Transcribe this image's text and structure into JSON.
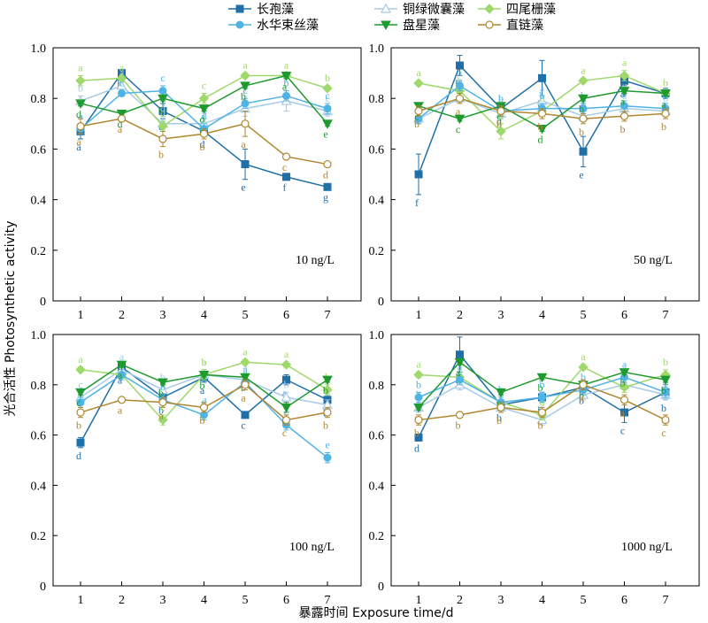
{
  "chart_data": {
    "type": "line",
    "ylabel": "光合活性 Photosynthetic activity",
    "xlabel": "暴露时间 Exposure time/d",
    "x": [
      1,
      2,
      3,
      4,
      5,
      6,
      7
    ],
    "xticks": [
      "1",
      "2",
      "3",
      "4",
      "5",
      "6",
      "7"
    ],
    "yticks": [
      "0",
      "0.2",
      "0.4",
      "0.6",
      "0.8",
      "1.0"
    ],
    "ylim": [
      0,
      1.0
    ],
    "legend": {
      "placement": "top-center",
      "entries": [
        {
          "name": "长孢藻",
          "color": "#1f6fa8",
          "marker": "square-filled"
        },
        {
          "name": "铜绿微囊藻",
          "color": "#a6cbe8",
          "marker": "triangle-open"
        },
        {
          "name": "四尾栅藻",
          "color": "#9fd86b",
          "marker": "diamond-filled"
        },
        {
          "name": "水华束丝藻",
          "color": "#4fb3e6",
          "marker": "circle-filled"
        },
        {
          "name": "盘星藻",
          "color": "#1e9a2e",
          "marker": "triangle-down-filled"
        },
        {
          "name": "直链藻",
          "color": "#b0862e",
          "marker": "circle-open"
        }
      ]
    },
    "panels": [
      {
        "label": "10 ng/L",
        "series": [
          {
            "name": "长孢藻",
            "values": [
              0.67,
              0.9,
              0.75,
              0.67,
              0.54,
              0.49,
              0.45
            ],
            "err": [
              0.03,
              0.01,
              0.03,
              0.02,
              0.06,
              0.01,
              0.01
            ],
            "letters": [
              "a",
              "b",
              "a",
              "d",
              "e",
              "f",
              "g"
            ]
          },
          {
            "name": "铜绿微囊藻",
            "values": [
              0.79,
              0.85,
              0.7,
              0.7,
              0.76,
              0.79,
              0.75
            ],
            "err": [
              0.02,
              0.02,
              0.03,
              0.02,
              0.03,
              0.04,
              0.02
            ],
            "letters": [
              "b",
              "a",
              "d",
              "d",
              "c",
              "b",
              "c"
            ]
          },
          {
            "name": "四尾栅藻",
            "values": [
              0.87,
              0.88,
              0.69,
              0.8,
              0.89,
              0.89,
              0.84
            ],
            "err": [
              0.02,
              0.01,
              0.02,
              0.02,
              0.01,
              0.01,
              0.01
            ],
            "letters": [
              "a",
              "a",
              "d",
              "c",
              "a",
              "a",
              "b"
            ]
          },
          {
            "name": "水华束丝藻",
            "values": [
              0.68,
              0.82,
              0.83,
              0.68,
              0.78,
              0.81,
              0.76
            ],
            "err": [
              0.02,
              0.01,
              0.02,
              0.02,
              0.02,
              0.02,
              0.02
            ],
            "letters": [
              "a",
              "c",
              "c",
              "d",
              "c",
              "b",
              "c"
            ]
          },
          {
            "name": "盘星藻",
            "values": [
              0.78,
              0.74,
              0.8,
              0.76,
              0.85,
              0.89,
              0.7
            ],
            "err": [
              0.01,
              0.01,
              0.01,
              0.01,
              0.01,
              0.01,
              0.01
            ],
            "letters": [
              "d",
              "d",
              "c",
              "d",
              "b",
              "a",
              "e"
            ]
          },
          {
            "name": "直链藻",
            "values": [
              0.69,
              0.72,
              0.64,
              0.66,
              0.7,
              0.57,
              0.54
            ],
            "err": [
              0.03,
              0.01,
              0.03,
              0.02,
              0.05,
              0.01,
              0.01
            ],
            "letters": [
              "a",
              "a",
              "b",
              "b",
              "a",
              "c",
              "d"
            ]
          }
        ]
      },
      {
        "label": "50 ng/L",
        "series": [
          {
            "name": "长孢藻",
            "values": [
              0.5,
              0.93,
              0.76,
              0.88,
              0.59,
              0.87,
              0.82
            ],
            "err": [
              0.08,
              0.04,
              0.02,
              0.07,
              0.06,
              0.02,
              0.02
            ],
            "letters": [
              "f",
              "b",
              "d",
              "b",
              "e",
              "a",
              "c"
            ]
          },
          {
            "name": "铜绿微囊藻",
            "values": [
              0.72,
              0.8,
              0.74,
              0.79,
              0.73,
              0.76,
              0.75
            ],
            "err": [
              0.02,
              0.02,
              0.02,
              0.02,
              0.02,
              0.02,
              0.02
            ],
            "letters": [
              "b",
              "a",
              "b",
              "a",
              "b",
              "a",
              "b"
            ]
          },
          {
            "name": "四尾栅藻",
            "values": [
              0.86,
              0.83,
              0.67,
              0.75,
              0.87,
              0.89,
              0.82
            ],
            "err": [
              0.01,
              0.01,
              0.03,
              0.02,
              0.01,
              0.02,
              0.01
            ],
            "letters": [
              "a",
              "b",
              "d",
              "c",
              "a",
              "a",
              "b"
            ]
          },
          {
            "name": "水华束丝藻",
            "values": [
              0.72,
              0.85,
              0.75,
              0.76,
              0.76,
              0.77,
              0.76
            ],
            "err": [
              0.02,
              0.02,
              0.02,
              0.02,
              0.02,
              0.02,
              0.02
            ],
            "letters": [
              "c",
              "a",
              "b",
              "b",
              "b",
              "b",
              "b"
            ]
          },
          {
            "name": "盘星藻",
            "values": [
              0.77,
              0.72,
              0.77,
              0.68,
              0.8,
              0.83,
              0.82
            ],
            "err": [
              0.01,
              0.01,
              0.01,
              0.01,
              0.01,
              0.01,
              0.01
            ],
            "letters": [
              "c",
              "c",
              "c",
              "d",
              "b",
              "a",
              "a"
            ]
          },
          {
            "name": "直链藻",
            "values": [
              0.75,
              0.8,
              0.75,
              0.74,
              0.72,
              0.73,
              0.74
            ],
            "err": [
              0.02,
              0.02,
              0.02,
              0.02,
              0.02,
              0.02,
              0.02
            ],
            "letters": [
              "b",
              "a",
              "b",
              "b",
              "b",
              "b",
              "b"
            ]
          }
        ]
      },
      {
        "label": "100 ng/L",
        "series": [
          {
            "name": "长孢藻",
            "values": [
              0.57,
              0.87,
              0.75,
              0.83,
              0.68,
              0.82,
              0.74
            ],
            "err": [
              0.02,
              0.02,
              0.02,
              0.02,
              0.01,
              0.02,
              0.02
            ],
            "letters": [
              "d",
              "a",
              "b",
              "a",
              "c",
              "a",
              "b"
            ]
          },
          {
            "name": "铜绿微囊藻",
            "values": [
              0.75,
              0.86,
              0.78,
              0.84,
              0.82,
              0.75,
              0.72
            ],
            "err": [
              0.02,
              0.02,
              0.02,
              0.02,
              0.02,
              0.02,
              0.02
            ],
            "letters": [
              "c",
              "a",
              "b",
              "a",
              "a",
              "b",
              "c"
            ]
          },
          {
            "name": "四尾栅藻",
            "values": [
              0.86,
              0.84,
              0.66,
              0.84,
              0.89,
              0.88,
              0.78
            ],
            "err": [
              0.01,
              0.01,
              0.02,
              0.02,
              0.01,
              0.01,
              0.02
            ],
            "letters": [
              "a",
              "a",
              "c",
              "b",
              "a",
              "a",
              "b"
            ]
          },
          {
            "name": "水华束丝藻",
            "values": [
              0.73,
              0.84,
              0.74,
              0.68,
              0.81,
              0.64,
              0.51
            ],
            "err": [
              0.02,
              0.02,
              0.02,
              0.02,
              0.02,
              0.02,
              0.02
            ],
            "letters": [
              "c",
              "a",
              "b",
              "d",
              "a",
              "c",
              "e"
            ]
          },
          {
            "name": "盘星藻",
            "values": [
              0.77,
              0.88,
              0.81,
              0.84,
              0.83,
              0.71,
              0.82
            ],
            "err": [
              0.01,
              0.01,
              0.01,
              0.01,
              0.01,
              0.02,
              0.01
            ],
            "letters": [
              "c",
              "a",
              "b",
              "b",
              "b",
              "d",
              "b"
            ]
          },
          {
            "name": "直链藻",
            "values": [
              0.69,
              0.74,
              0.73,
              0.71,
              0.8,
              0.66,
              0.69
            ],
            "err": [
              0.02,
              0.01,
              0.02,
              0.02,
              0.02,
              0.02,
              0.02
            ],
            "letters": [
              "b",
              "a",
              "a",
              "b",
              "a",
              "c",
              "b"
            ]
          }
        ]
      },
      {
        "label": "1000 ng/L",
        "series": [
          {
            "name": "长孢藻",
            "values": [
              0.59,
              0.92,
              0.72,
              0.75,
              0.79,
              0.69,
              0.77
            ],
            "err": [
              0.01,
              0.07,
              0.02,
              0.02,
              0.02,
              0.04,
              0.03
            ],
            "letters": [
              "d",
              "a",
              "b",
              "b",
              "b",
              "c",
              "b"
            ]
          },
          {
            "name": "铜绿微囊藻",
            "values": [
              0.71,
              0.8,
              0.71,
              0.66,
              0.76,
              0.8,
              0.76
            ],
            "err": [
              0.02,
              0.02,
              0.02,
              0.02,
              0.02,
              0.02,
              0.02
            ],
            "letters": [
              "b",
              "a",
              "b",
              "c",
              "a",
              "a",
              "b"
            ]
          },
          {
            "name": "四尾栅藻",
            "values": [
              0.84,
              0.83,
              0.73,
              0.68,
              0.87,
              0.79,
              0.84
            ],
            "err": [
              0.01,
              0.01,
              0.02,
              0.02,
              0.01,
              0.02,
              0.02
            ],
            "letters": [
              "a",
              "a",
              "c",
              "d",
              "a",
              "b",
              "b"
            ]
          },
          {
            "name": "水华束丝藻",
            "values": [
              0.75,
              0.82,
              0.73,
              0.75,
              0.78,
              0.83,
              0.77
            ],
            "err": [
              0.02,
              0.02,
              0.02,
              0.02,
              0.02,
              0.02,
              0.02
            ],
            "letters": [
              "b",
              "a",
              "b",
              "b",
              "b",
              "a",
              "b"
            ]
          },
          {
            "name": "盘星藻",
            "values": [
              0.71,
              0.89,
              0.77,
              0.83,
              0.8,
              0.85,
              0.82
            ],
            "err": [
              0.01,
              0.01,
              0.01,
              0.01,
              0.01,
              0.01,
              0.01
            ],
            "letters": [
              "c",
              "a",
              "c",
              "b",
              "b",
              "b",
              "b"
            ]
          },
          {
            "name": "直链藻",
            "values": [
              0.66,
              0.68,
              0.71,
              0.69,
              0.8,
              0.74,
              0.66
            ],
            "err": [
              0.02,
              0.01,
              0.02,
              0.02,
              0.02,
              0.02,
              0.02
            ],
            "letters": [
              "b",
              "b",
              "b",
              "b",
              "a",
              "a",
              "c"
            ]
          }
        ]
      }
    ]
  }
}
